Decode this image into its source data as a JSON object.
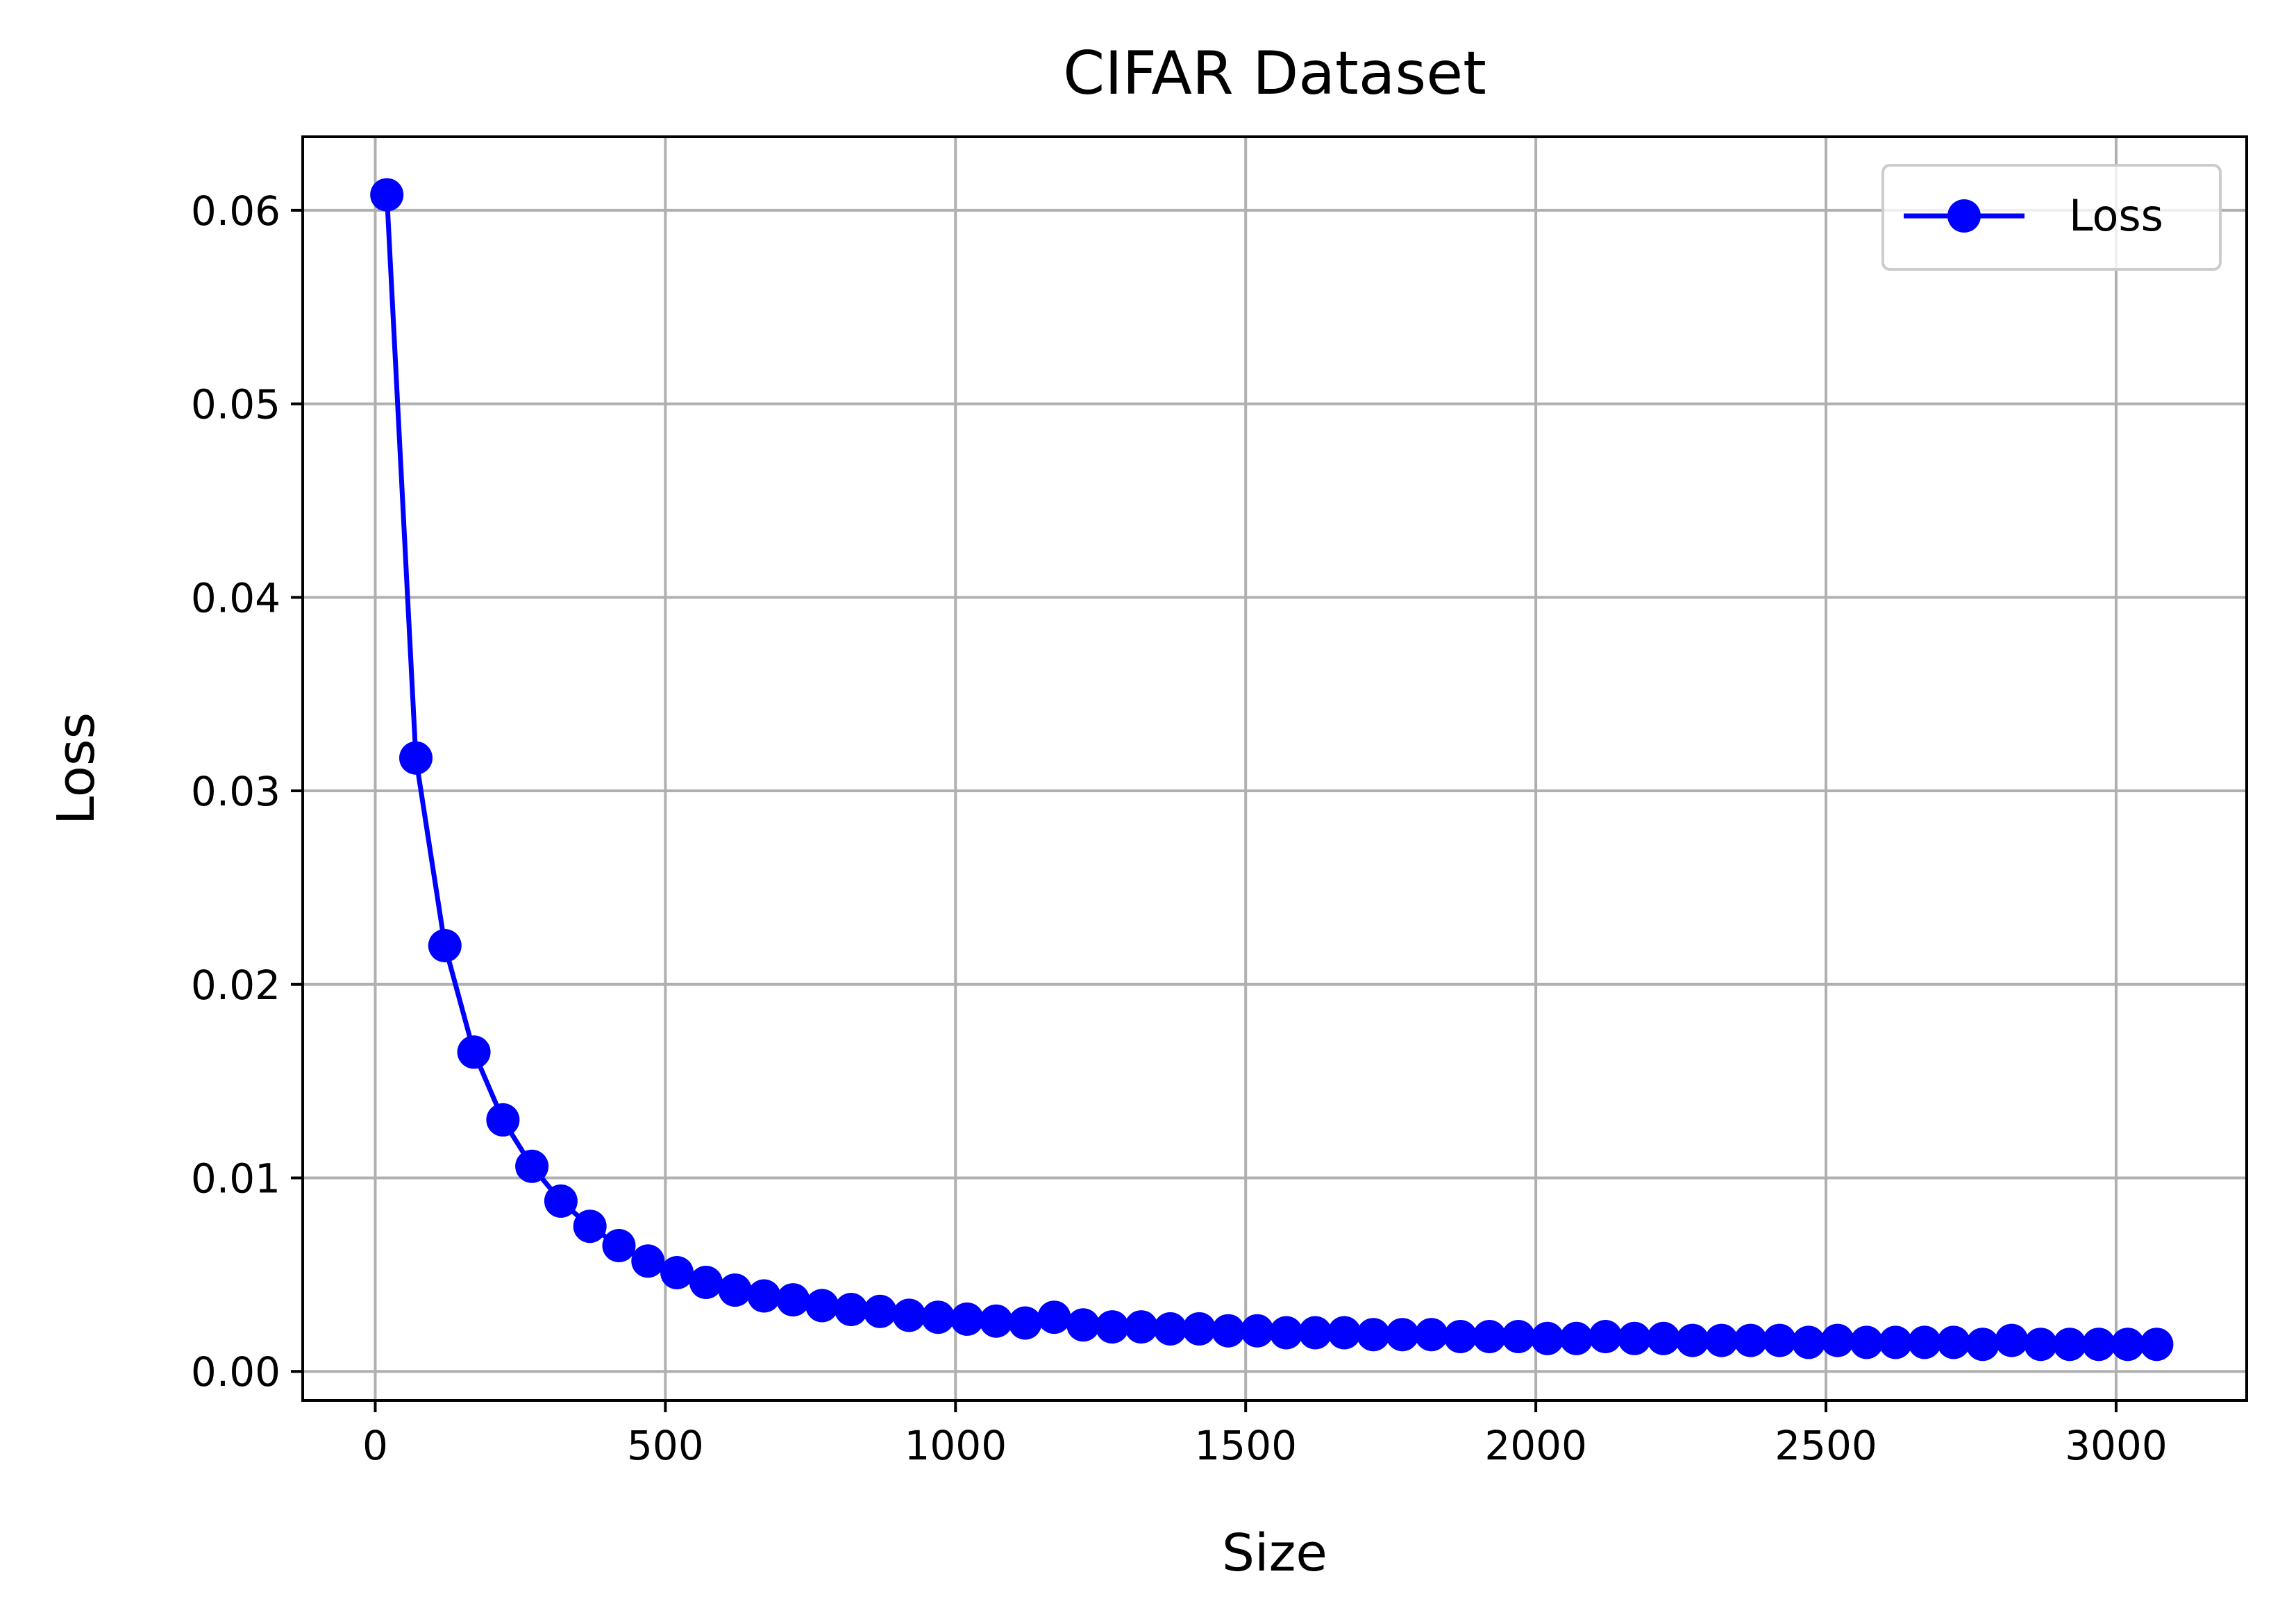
{
  "chart_data": {
    "type": "line",
    "title": "CIFAR Dataset",
    "xlabel": "Size",
    "ylabel": "Loss",
    "xlim": [
      -125,
      3225
    ],
    "ylim": [
      -0.0015,
      0.0638
    ],
    "xticks": [
      0,
      500,
      1000,
      1500,
      2000,
      2500,
      3000
    ],
    "yticks": [
      0.0,
      0.01,
      0.02,
      0.03,
      0.04,
      0.05,
      0.06
    ],
    "xtick_labels": [
      "0",
      "500",
      "1000",
      "1500",
      "2000",
      "2500",
      "3000"
    ],
    "ytick_labels": [
      "0.00",
      "0.01",
      "0.02",
      "0.03",
      "0.04",
      "0.05",
      "0.06"
    ],
    "grid": true,
    "legend_position": "top-right",
    "series": [
      {
        "name": "Loss",
        "color": "#0000ff",
        "marker": "circle",
        "x": [
          20,
          70,
          120,
          170,
          220,
          270,
          320,
          370,
          420,
          470,
          520,
          570,
          620,
          670,
          720,
          770,
          820,
          870,
          920,
          970,
          1020,
          1070,
          1120,
          1170,
          1220,
          1270,
          1320,
          1370,
          1420,
          1470,
          1520,
          1570,
          1620,
          1670,
          1720,
          1770,
          1820,
          1870,
          1920,
          1970,
          2020,
          2070,
          2120,
          2170,
          2220,
          2270,
          2320,
          2370,
          2420,
          2470,
          2520,
          2570,
          2620,
          2670,
          2720,
          2770,
          2820,
          2870,
          2920,
          2970,
          3020,
          3070
        ],
        "y": [
          0.0608,
          0.0317,
          0.022,
          0.0165,
          0.013,
          0.0106,
          0.0088,
          0.0075,
          0.0065,
          0.0057,
          0.0051,
          0.0046,
          0.0042,
          0.0039,
          0.0037,
          0.0034,
          0.0032,
          0.0031,
          0.0029,
          0.0028,
          0.0027,
          0.0026,
          0.0025,
          0.0028,
          0.0024,
          0.0023,
          0.0023,
          0.0022,
          0.0022,
          0.0021,
          0.0021,
          0.002,
          0.002,
          0.002,
          0.0019,
          0.0019,
          0.0019,
          0.0018,
          0.0018,
          0.0018,
          0.0017,
          0.0017,
          0.0018,
          0.0017,
          0.0017,
          0.0016,
          0.0016,
          0.0016,
          0.0016,
          0.0015,
          0.0016,
          0.0015,
          0.0015,
          0.0015,
          0.0015,
          0.0014,
          0.0016,
          0.0014,
          0.0014,
          0.0014,
          0.0014,
          0.0014
        ]
      }
    ]
  }
}
